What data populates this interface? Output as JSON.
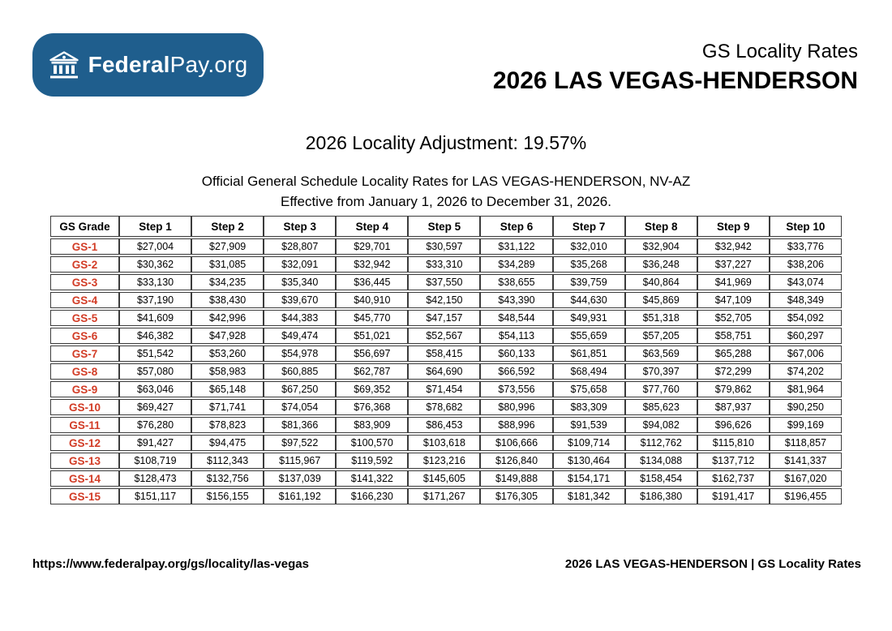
{
  "colors": {
    "brand_blue": "#1f5e8d",
    "grade_red": "#d23c26",
    "table_border": "#3c3c3c"
  },
  "logo": {
    "icon": "bank-icon",
    "brand_bold": "Federal",
    "brand_rest": "Pay.org"
  },
  "header": {
    "subtitle": "GS Locality Rates",
    "title": "2026 LAS VEGAS-HENDERSON"
  },
  "intro": {
    "adjustment_line": "2026 Locality Adjustment: 19.57%",
    "official_line": "Official General Schedule Locality Rates for LAS VEGAS-HENDERSON, NV-AZ",
    "effective_line": "Effective from January 1, 2026 to December 31, 2026."
  },
  "table": {
    "columns": [
      "GS Grade",
      "Step 1",
      "Step 2",
      "Step 3",
      "Step 4",
      "Step 5",
      "Step 6",
      "Step 7",
      "Step 8",
      "Step 9",
      "Step 10"
    ],
    "rows": [
      {
        "grade": "GS-1",
        "steps": [
          "$27,004",
          "$27,909",
          "$28,807",
          "$29,701",
          "$30,597",
          "$31,122",
          "$32,010",
          "$32,904",
          "$32,942",
          "$33,776"
        ]
      },
      {
        "grade": "GS-2",
        "steps": [
          "$30,362",
          "$31,085",
          "$32,091",
          "$32,942",
          "$33,310",
          "$34,289",
          "$35,268",
          "$36,248",
          "$37,227",
          "$38,206"
        ]
      },
      {
        "grade": "GS-3",
        "steps": [
          "$33,130",
          "$34,235",
          "$35,340",
          "$36,445",
          "$37,550",
          "$38,655",
          "$39,759",
          "$40,864",
          "$41,969",
          "$43,074"
        ]
      },
      {
        "grade": "GS-4",
        "steps": [
          "$37,190",
          "$38,430",
          "$39,670",
          "$40,910",
          "$42,150",
          "$43,390",
          "$44,630",
          "$45,869",
          "$47,109",
          "$48,349"
        ]
      },
      {
        "grade": "GS-5",
        "steps": [
          "$41,609",
          "$42,996",
          "$44,383",
          "$45,770",
          "$47,157",
          "$48,544",
          "$49,931",
          "$51,318",
          "$52,705",
          "$54,092"
        ]
      },
      {
        "grade": "GS-6",
        "steps": [
          "$46,382",
          "$47,928",
          "$49,474",
          "$51,021",
          "$52,567",
          "$54,113",
          "$55,659",
          "$57,205",
          "$58,751",
          "$60,297"
        ]
      },
      {
        "grade": "GS-7",
        "steps": [
          "$51,542",
          "$53,260",
          "$54,978",
          "$56,697",
          "$58,415",
          "$60,133",
          "$61,851",
          "$63,569",
          "$65,288",
          "$67,006"
        ]
      },
      {
        "grade": "GS-8",
        "steps": [
          "$57,080",
          "$58,983",
          "$60,885",
          "$62,787",
          "$64,690",
          "$66,592",
          "$68,494",
          "$70,397",
          "$72,299",
          "$74,202"
        ]
      },
      {
        "grade": "GS-9",
        "steps": [
          "$63,046",
          "$65,148",
          "$67,250",
          "$69,352",
          "$71,454",
          "$73,556",
          "$75,658",
          "$77,760",
          "$79,862",
          "$81,964"
        ]
      },
      {
        "grade": "GS-10",
        "steps": [
          "$69,427",
          "$71,741",
          "$74,054",
          "$76,368",
          "$78,682",
          "$80,996",
          "$83,309",
          "$85,623",
          "$87,937",
          "$90,250"
        ]
      },
      {
        "grade": "GS-11",
        "steps": [
          "$76,280",
          "$78,823",
          "$81,366",
          "$83,909",
          "$86,453",
          "$88,996",
          "$91,539",
          "$94,082",
          "$96,626",
          "$99,169"
        ]
      },
      {
        "grade": "GS-12",
        "steps": [
          "$91,427",
          "$94,475",
          "$97,522",
          "$100,570",
          "$103,618",
          "$106,666",
          "$109,714",
          "$112,762",
          "$115,810",
          "$118,857"
        ]
      },
      {
        "grade": "GS-13",
        "steps": [
          "$108,719",
          "$112,343",
          "$115,967",
          "$119,592",
          "$123,216",
          "$126,840",
          "$130,464",
          "$134,088",
          "$137,712",
          "$141,337"
        ]
      },
      {
        "grade": "GS-14",
        "steps": [
          "$128,473",
          "$132,756",
          "$137,039",
          "$141,322",
          "$145,605",
          "$149,888",
          "$154,171",
          "$158,454",
          "$162,737",
          "$167,020"
        ]
      },
      {
        "grade": "GS-15",
        "steps": [
          "$151,117",
          "$156,155",
          "$161,192",
          "$166,230",
          "$171,267",
          "$176,305",
          "$181,342",
          "$186,380",
          "$191,417",
          "$196,455"
        ]
      }
    ]
  },
  "footer": {
    "url": "https://www.federalpay.org/gs/locality/las-vegas",
    "right_text": "2026 LAS VEGAS-HENDERSON | GS Locality Rates"
  }
}
